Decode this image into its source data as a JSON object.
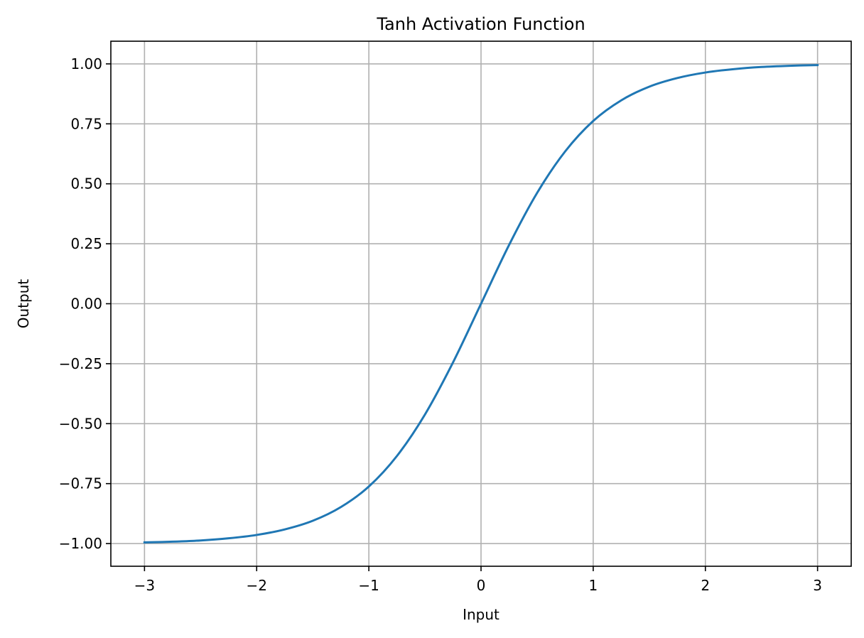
{
  "chart_data": {
    "type": "line",
    "title": "Tanh Activation Function",
    "xlabel": "Input",
    "ylabel": "Output",
    "xlim": [
      -3.3,
      3.3
    ],
    "ylim": [
      -1.0945,
      1.0945
    ],
    "xticks": [
      -3,
      -2,
      -1,
      0,
      1,
      2,
      3
    ],
    "xtick_labels": [
      "−3",
      "−2",
      "−1",
      "0",
      "1",
      "2",
      "3"
    ],
    "yticks": [
      -1.0,
      -0.75,
      -0.5,
      -0.25,
      0.0,
      0.25,
      0.5,
      0.75,
      1.0
    ],
    "ytick_labels": [
      "−1.00",
      "−0.75",
      "−0.50",
      "−0.25",
      "0.00",
      "0.25",
      "0.50",
      "0.75",
      "1.00"
    ],
    "grid": true,
    "series": [
      {
        "color": "#1f77b4",
        "x": [
          -3.0,
          -2.75,
          -2.5,
          -2.25,
          -2.0,
          -1.75,
          -1.5,
          -1.25,
          -1.0,
          -0.75,
          -0.5,
          -0.25,
          0.0,
          0.25,
          0.5,
          0.75,
          1.0,
          1.25,
          1.5,
          1.75,
          2.0,
          2.25,
          2.5,
          2.75,
          3.0
        ],
        "y": [
          -0.995,
          -0.992,
          -0.987,
          -0.978,
          -0.964,
          -0.941,
          -0.905,
          -0.848,
          -0.762,
          -0.635,
          -0.462,
          -0.245,
          0.0,
          0.245,
          0.462,
          0.635,
          0.762,
          0.848,
          0.905,
          0.941,
          0.964,
          0.978,
          0.987,
          0.992,
          0.995
        ]
      }
    ]
  }
}
